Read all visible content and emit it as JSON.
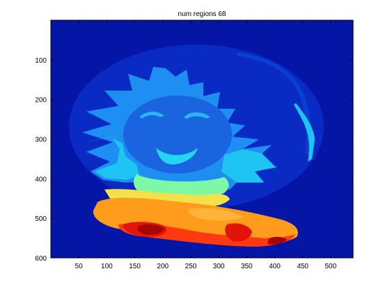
{
  "chart_data": {
    "type": "heatmap",
    "title": "num regions 68",
    "xlabel": "",
    "ylabel": "",
    "xlim": [
      0,
      540
    ],
    "ylim": [
      600,
      0
    ],
    "y_reversed": true,
    "x_ticks": [
      50,
      100,
      150,
      200,
      250,
      300,
      350,
      400,
      450,
      500
    ],
    "y_ticks": [
      100,
      200,
      300,
      400,
      500,
      600
    ],
    "colormap": "jet",
    "num_regions": 68,
    "background_color": "#0516a6",
    "colors": {
      "dark_blue": "#0516a6",
      "bg_oval": "#0a2bc3",
      "ring": "#0a3fd3",
      "flower": "#1f8ef3",
      "face": "#1a64e0",
      "eye": "#2bb6f3",
      "mouth": "#25d6f0",
      "petal_cyan": "#1ec4f2",
      "leaf_green": "#7df8a4",
      "yellow": "#f4e04a",
      "orange": "#ff9c1c",
      "red_orange": "#ff3a10",
      "red": "#e21308",
      "dark_red": "#a60606"
    }
  }
}
